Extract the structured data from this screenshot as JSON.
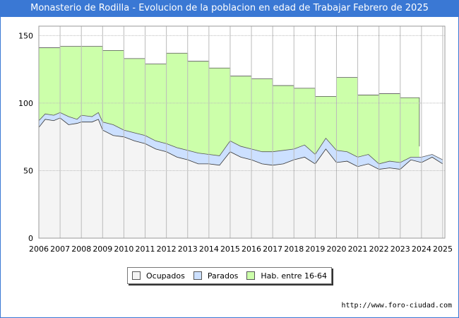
{
  "chart_data": {
    "type": "area",
    "title": "Monasterio de Rodilla - Evolucion de la poblacion en edad de Trabajar Febrero de 2025",
    "x_ticks": [
      "2006",
      "2007",
      "2008",
      "2009",
      "2010",
      "2011",
      "2012",
      "2013",
      "2014",
      "2015",
      "2016",
      "2017",
      "2018",
      "2019",
      "2020",
      "2021",
      "2022",
      "2023",
      "2024",
      "2025"
    ],
    "y_ticks": [
      0,
      50,
      100,
      150
    ],
    "xlim": [
      2006,
      2025.1
    ],
    "ylim": [
      0,
      157
    ],
    "grid": true,
    "legend_position": "bottom",
    "series": [
      {
        "name": "Hab. entre 16-64",
        "color": "#ccffaa",
        "points": [
          [
            2006,
            141
          ],
          [
            2007,
            142
          ],
          [
            2008,
            142
          ],
          [
            2009,
            139
          ],
          [
            2010,
            133
          ],
          [
            2011,
            129
          ],
          [
            2012,
            137
          ],
          [
            2013,
            131
          ],
          [
            2014,
            126
          ],
          [
            2015,
            120
          ],
          [
            2016,
            118
          ],
          [
            2017,
            113
          ],
          [
            2018,
            111
          ],
          [
            2019,
            105
          ],
          [
            2020,
            119
          ],
          [
            2021,
            106
          ],
          [
            2022,
            107
          ],
          [
            2023,
            104
          ],
          [
            2023.9,
            68
          ]
        ]
      },
      {
        "name": "Parados",
        "color": "#cce0ff",
        "points": [
          [
            2006,
            87
          ],
          [
            2006.3,
            92
          ],
          [
            2006.7,
            91
          ],
          [
            2007,
            93
          ],
          [
            2007.4,
            90
          ],
          [
            2007.8,
            88
          ],
          [
            2008,
            91
          ],
          [
            2008.5,
            90
          ],
          [
            2008.8,
            93
          ],
          [
            2009,
            86
          ],
          [
            2009.5,
            84
          ],
          [
            2010,
            80
          ],
          [
            2010.5,
            78
          ],
          [
            2011,
            76
          ],
          [
            2011.5,
            72
          ],
          [
            2012,
            70
          ],
          [
            2012.5,
            67
          ],
          [
            2013,
            65
          ],
          [
            2013.5,
            63
          ],
          [
            2014,
            62
          ],
          [
            2014.5,
            61
          ],
          [
            2015,
            72
          ],
          [
            2015.5,
            68
          ],
          [
            2016,
            66
          ],
          [
            2016.5,
            64
          ],
          [
            2017,
            64
          ],
          [
            2017.5,
            65
          ],
          [
            2018,
            66
          ],
          [
            2018.5,
            69
          ],
          [
            2019,
            62
          ],
          [
            2019.5,
            74
          ],
          [
            2020,
            65
          ],
          [
            2020.5,
            64
          ],
          [
            2021,
            60
          ],
          [
            2021.5,
            62
          ],
          [
            2022,
            55
          ],
          [
            2022.5,
            57
          ],
          [
            2023,
            56
          ],
          [
            2023.5,
            60
          ],
          [
            2024,
            60
          ],
          [
            2024.5,
            62
          ],
          [
            2025,
            58
          ]
        ]
      },
      {
        "name": "Ocupados",
        "color": "#f4f4f4",
        "points": [
          [
            2006,
            82
          ],
          [
            2006.3,
            88
          ],
          [
            2006.7,
            87
          ],
          [
            2007,
            89
          ],
          [
            2007.4,
            84
          ],
          [
            2007.8,
            85
          ],
          [
            2008,
            86
          ],
          [
            2008.5,
            86
          ],
          [
            2008.8,
            88
          ],
          [
            2009,
            80
          ],
          [
            2009.5,
            76
          ],
          [
            2010,
            75
          ],
          [
            2010.5,
            72
          ],
          [
            2011,
            70
          ],
          [
            2011.5,
            66
          ],
          [
            2012,
            64
          ],
          [
            2012.5,
            60
          ],
          [
            2013,
            58
          ],
          [
            2013.5,
            55
          ],
          [
            2014,
            55
          ],
          [
            2014.5,
            54
          ],
          [
            2015,
            64
          ],
          [
            2015.5,
            60
          ],
          [
            2016,
            58
          ],
          [
            2016.5,
            55
          ],
          [
            2017,
            54
          ],
          [
            2017.5,
            55
          ],
          [
            2018,
            58
          ],
          [
            2018.5,
            60
          ],
          [
            2019,
            55
          ],
          [
            2019.5,
            66
          ],
          [
            2020,
            56
          ],
          [
            2020.5,
            57
          ],
          [
            2021,
            53
          ],
          [
            2021.5,
            55
          ],
          [
            2022,
            51
          ],
          [
            2022.5,
            52
          ],
          [
            2023,
            51
          ],
          [
            2023.5,
            58
          ],
          [
            2024,
            56
          ],
          [
            2024.5,
            60
          ],
          [
            2025,
            55
          ]
        ]
      }
    ]
  },
  "legend": {
    "items": [
      {
        "label": "Ocupados",
        "color": "#f4f4f4"
      },
      {
        "label": "Parados",
        "color": "#cce0ff"
      },
      {
        "label": "Hab. entre 16-64",
        "color": "#ccffaa"
      }
    ]
  },
  "footer": {
    "url": "http://www.foro-ciudad.com"
  }
}
